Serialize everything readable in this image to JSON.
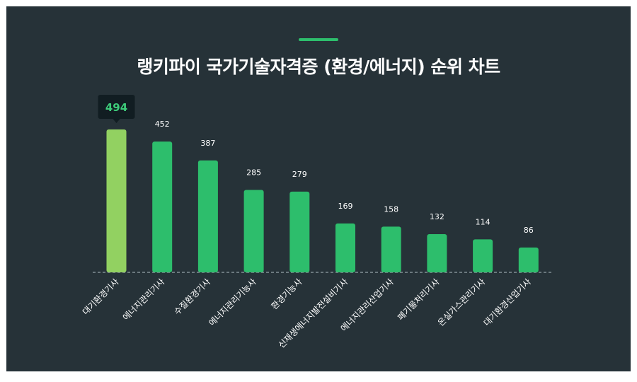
{
  "title": "랭키파이 국가기술자격증 (환경/에너지) 순위 차트",
  "colors": {
    "background": "#263238",
    "accent": "#2dbe6c",
    "bar": "#2dbe6c",
    "highlight_bar": "#92d161",
    "tooltip_bg": "#111d22",
    "tooltip_text": "#3dcc7a",
    "label": "#ffffff",
    "baseline": "#b0bec5"
  },
  "chart_data": {
    "type": "bar",
    "title": "랭키파이 국가기술자격증 (환경/에너지) 순위 차트",
    "categories": [
      "대기환경기사",
      "에너지관리기사",
      "수질환경기사",
      "에너지관리기능사",
      "환경기능사",
      "신재생에너지발전설비기사",
      "에너지관리산업기사",
      "폐기물처리기사",
      "온실가스관리기사",
      "대기환경산업기사"
    ],
    "values": [
      494,
      452,
      387,
      285,
      279,
      169,
      158,
      132,
      114,
      86
    ],
    "highlight_index": 0,
    "ylim": [
      0,
      500
    ],
    "grid": false,
    "legend": "none",
    "data_labels": true
  }
}
